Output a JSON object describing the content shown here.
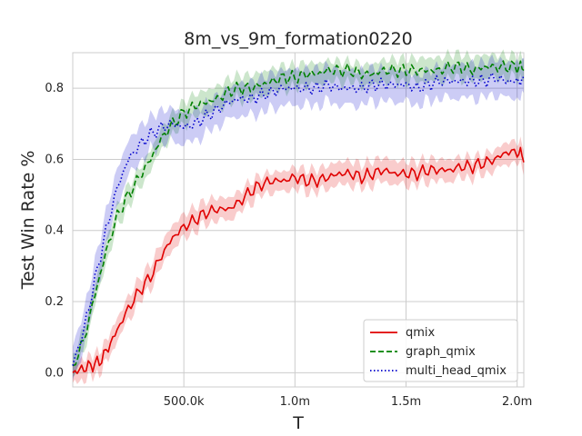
{
  "chart_data": {
    "type": "line",
    "title": "8m_vs_9m_formation0220",
    "xlabel": "T",
    "ylabel": "Test Win Rate %",
    "xlim": [
      0,
      2030000
    ],
    "ylim": [
      -0.04,
      0.9
    ],
    "xticks": [
      500000,
      1000000,
      1500000,
      2000000
    ],
    "xtick_labels": [
      "500.0k",
      "1.0m",
      "1.5m",
      "2.0m"
    ],
    "yticks": [
      0.0,
      0.2,
      0.4,
      0.6,
      0.8
    ],
    "ytick_labels": [
      "0.0",
      "0.2",
      "0.4",
      "0.6",
      "0.8"
    ],
    "grid": true,
    "legend_position": "lower-right",
    "series": [
      {
        "name": "qmix",
        "color": "#e00000",
        "dash": "solid",
        "band": 0.03,
        "points": [
          [
            0,
            0.0
          ],
          [
            40000,
            0.01
          ],
          [
            80000,
            0.02
          ],
          [
            120000,
            0.03
          ],
          [
            160000,
            0.07
          ],
          [
            200000,
            0.12
          ],
          [
            250000,
            0.18
          ],
          [
            300000,
            0.23
          ],
          [
            350000,
            0.27
          ],
          [
            400000,
            0.33
          ],
          [
            450000,
            0.38
          ],
          [
            500000,
            0.41
          ],
          [
            550000,
            0.43
          ],
          [
            600000,
            0.45
          ],
          [
            650000,
            0.46
          ],
          [
            700000,
            0.46
          ],
          [
            750000,
            0.48
          ],
          [
            800000,
            0.51
          ],
          [
            850000,
            0.53
          ],
          [
            900000,
            0.54
          ],
          [
            950000,
            0.54
          ],
          [
            1000000,
            0.55
          ],
          [
            1050000,
            0.54
          ],
          [
            1100000,
            0.54
          ],
          [
            1150000,
            0.55
          ],
          [
            1200000,
            0.56
          ],
          [
            1250000,
            0.56
          ],
          [
            1300000,
            0.55
          ],
          [
            1350000,
            0.56
          ],
          [
            1400000,
            0.57
          ],
          [
            1450000,
            0.56
          ],
          [
            1500000,
            0.56
          ],
          [
            1550000,
            0.56
          ],
          [
            1600000,
            0.57
          ],
          [
            1650000,
            0.57
          ],
          [
            1700000,
            0.57
          ],
          [
            1750000,
            0.58
          ],
          [
            1800000,
            0.58
          ],
          [
            1850000,
            0.59
          ],
          [
            1900000,
            0.6
          ],
          [
            1950000,
            0.62
          ],
          [
            2000000,
            0.62
          ],
          [
            2030000,
            0.61
          ]
        ]
      },
      {
        "name": "graph_qmix",
        "color": "#008000",
        "dash": "dashed",
        "band": 0.03,
        "points": [
          [
            0,
            0.02
          ],
          [
            50000,
            0.09
          ],
          [
            100000,
            0.22
          ],
          [
            150000,
            0.34
          ],
          [
            200000,
            0.44
          ],
          [
            250000,
            0.5
          ],
          [
            300000,
            0.55
          ],
          [
            350000,
            0.6
          ],
          [
            400000,
            0.66
          ],
          [
            450000,
            0.7
          ],
          [
            500000,
            0.73
          ],
          [
            550000,
            0.75
          ],
          [
            600000,
            0.76
          ],
          [
            650000,
            0.77
          ],
          [
            700000,
            0.79
          ],
          [
            750000,
            0.8
          ],
          [
            800000,
            0.8
          ],
          [
            850000,
            0.81
          ],
          [
            900000,
            0.82
          ],
          [
            950000,
            0.83
          ],
          [
            1000000,
            0.83
          ],
          [
            1050000,
            0.84
          ],
          [
            1100000,
            0.84
          ],
          [
            1150000,
            0.85
          ],
          [
            1200000,
            0.85
          ],
          [
            1250000,
            0.85
          ],
          [
            1300000,
            0.84
          ],
          [
            1350000,
            0.84
          ],
          [
            1400000,
            0.85
          ],
          [
            1450000,
            0.85
          ],
          [
            1500000,
            0.85
          ],
          [
            1550000,
            0.85
          ],
          [
            1600000,
            0.85
          ],
          [
            1650000,
            0.85
          ],
          [
            1700000,
            0.86
          ],
          [
            1750000,
            0.86
          ],
          [
            1800000,
            0.85
          ],
          [
            1850000,
            0.86
          ],
          [
            1900000,
            0.86
          ],
          [
            1950000,
            0.86
          ],
          [
            2000000,
            0.86
          ],
          [
            2030000,
            0.86
          ]
        ]
      },
      {
        "name": "multi_head_qmix",
        "color": "#0000cc",
        "dash": "dotted",
        "band": 0.045,
        "points": [
          [
            0,
            0.02
          ],
          [
            50000,
            0.12
          ],
          [
            100000,
            0.26
          ],
          [
            150000,
            0.4
          ],
          [
            200000,
            0.52
          ],
          [
            250000,
            0.6
          ],
          [
            300000,
            0.64
          ],
          [
            350000,
            0.67
          ],
          [
            400000,
            0.69
          ],
          [
            450000,
            0.7
          ],
          [
            500000,
            0.69
          ],
          [
            550000,
            0.7
          ],
          [
            600000,
            0.72
          ],
          [
            650000,
            0.74
          ],
          [
            700000,
            0.76
          ],
          [
            750000,
            0.77
          ],
          [
            800000,
            0.77
          ],
          [
            850000,
            0.78
          ],
          [
            900000,
            0.79
          ],
          [
            950000,
            0.8
          ],
          [
            1000000,
            0.8
          ],
          [
            1050000,
            0.8
          ],
          [
            1100000,
            0.8
          ],
          [
            1150000,
            0.81
          ],
          [
            1200000,
            0.8
          ],
          [
            1250000,
            0.8
          ],
          [
            1300000,
            0.8
          ],
          [
            1350000,
            0.81
          ],
          [
            1400000,
            0.81
          ],
          [
            1450000,
            0.81
          ],
          [
            1500000,
            0.81
          ],
          [
            1550000,
            0.8
          ],
          [
            1600000,
            0.81
          ],
          [
            1650000,
            0.82
          ],
          [
            1700000,
            0.82
          ],
          [
            1750000,
            0.82
          ],
          [
            1800000,
            0.82
          ],
          [
            1850000,
            0.82
          ],
          [
            1900000,
            0.83
          ],
          [
            1950000,
            0.82
          ],
          [
            2000000,
            0.82
          ],
          [
            2030000,
            0.82
          ]
        ]
      }
    ]
  }
}
